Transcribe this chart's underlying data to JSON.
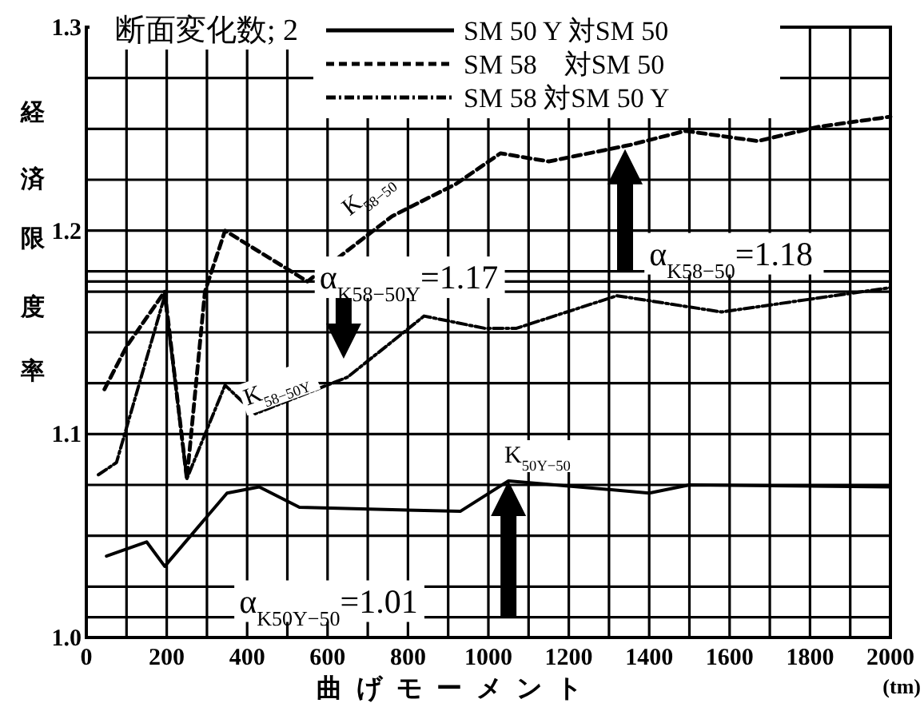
{
  "chart_data": {
    "type": "line",
    "xlabel": "曲げモーメント",
    "ylabel": "経済限度率",
    "legend_title": "断面変化数; 2",
    "legend": "top",
    "grid": true,
    "xlim": [
      0,
      2000
    ],
    "ylim": [
      1.0,
      1.3
    ],
    "xticks": [
      0,
      {
        "value": 100,
        "label": null
      },
      200,
      {
        "value": 300,
        "label": null
      },
      400,
      {
        "value": 500,
        "label": null
      },
      600,
      {
        "value": 700,
        "label": null
      },
      800,
      {
        "value": 900,
        "label": null
      },
      1000,
      {
        "value": 1100,
        "label": null
      },
      1200,
      {
        "value": 1300,
        "label": null
      },
      1400,
      {
        "value": 1500,
        "label": null
      },
      1600,
      {
        "value": 1700,
        "label": null
      },
      1800,
      {
        "value": 1900,
        "label": null
      },
      2000
    ],
    "yticks": [
      {
        "value": 1.0,
        "label": "1.0"
      },
      {
        "value": 1.025,
        "label": null
      },
      {
        "value": 1.05,
        "label": null
      },
      {
        "value": 1.075,
        "label": null
      },
      {
        "value": 1.1,
        "label": "1.1"
      },
      {
        "value": 1.125,
        "label": null
      },
      {
        "value": 1.15,
        "label": null
      },
      {
        "value": 1.175,
        "label": null
      },
      {
        "value": 1.2,
        "label": "1.2"
      },
      {
        "value": 1.225,
        "label": null
      },
      {
        "value": 1.25,
        "label": null
      },
      {
        "value": 1.275,
        "label": null
      },
      {
        "value": 1.3,
        "label": "1.3"
      }
    ],
    "series": [
      {
        "name": "SM 50 Y 対SM 50",
        "color": "#000000",
        "line_style": "solid",
        "x": [
          50,
          150,
          195,
          350,
          430,
          530,
          930,
          1050,
          1400,
          1500,
          2000
        ],
        "values": [
          1.04,
          1.047,
          1.035,
          1.071,
          1.074,
          1.064,
          1.062,
          1.077,
          1.071,
          1.075,
          1.074
        ]
      },
      {
        "name": "SM 58　対SM 50",
        "color": "#000000",
        "line_style": "dashed",
        "x": [
          45,
          100,
          195,
          250,
          295,
          345,
          550,
          760,
          920,
          1030,
          1150,
          1350,
          1490,
          1670,
          1820,
          2000
        ],
        "values": [
          1.122,
          1.143,
          1.17,
          1.078,
          1.17,
          1.2,
          1.175,
          1.207,
          1.223,
          1.238,
          1.234,
          1.242,
          1.249,
          1.244,
          1.251,
          1.256
        ]
      },
      {
        "name": "SM 58 対SM 50 Y",
        "color": "#000000",
        "line_style": "dotted",
        "x": [
          30,
          75,
          195,
          250,
          345,
          420,
          650,
          840,
          990,
          1070,
          1320,
          1580,
          2000
        ],
        "values": [
          1.08,
          1.086,
          1.168,
          1.078,
          1.124,
          1.11,
          1.128,
          1.158,
          1.152,
          1.152,
          1.168,
          1.16,
          1.172
        ]
      }
    ],
    "ref_lines": [
      {
        "axis": "y",
        "value": 1.18,
        "label": "α$_{K58−50}$=1.18"
      },
      {
        "axis": "y",
        "value": 1.17,
        "label": "α$_{K58−50Y}$=1.17"
      },
      {
        "axis": "y",
        "value": 1.01,
        "label": "α$_{K50Y−50}$=1.01"
      }
    ],
    "annotations": [
      "K$_{58−50}$",
      "K$_{58−50Y}$",
      "K$_{50Y−50}$",
      "(tm)"
    ]
  }
}
